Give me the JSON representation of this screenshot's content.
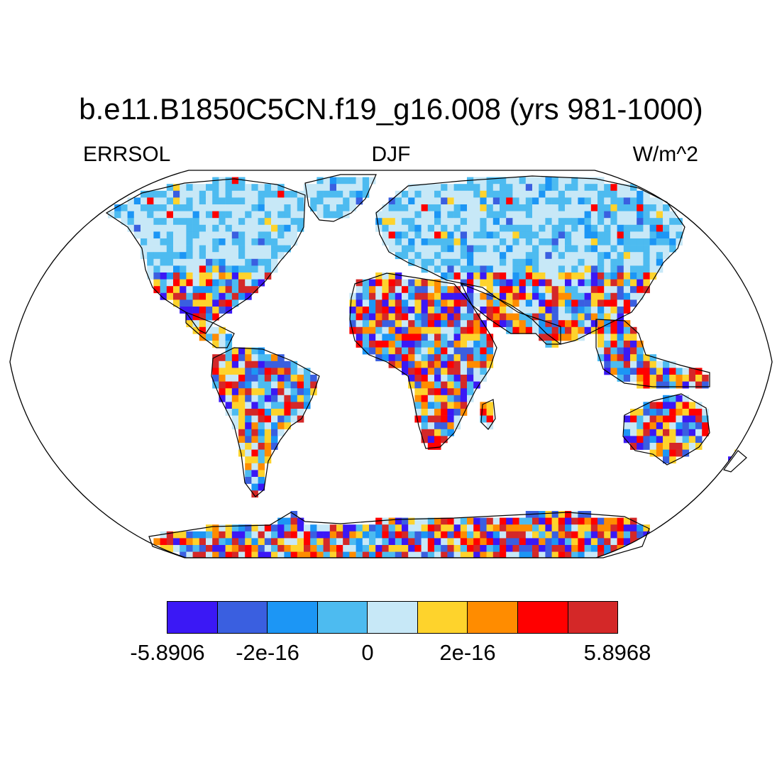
{
  "title": "b.e11.B1850C5CN.f19_g16.008 (yrs 981-1000)",
  "subtitle_left": "ERRSOL",
  "subtitle_center": "DJF",
  "subtitle_right": "W/m^2",
  "colorbar": {
    "colors": [
      "#3b18f5",
      "#3a5fe0",
      "#1c96f5",
      "#4dbbf0",
      "#c7e8f7",
      "#fed32c",
      "#ff8c00",
      "#ff0000",
      "#d42828"
    ],
    "labels": [
      "-5.8906",
      "-2e-16",
      "0",
      "2e-16",
      "5.8968"
    ]
  },
  "map": {
    "projection": "Robinson",
    "variable": "ERRSOL",
    "season": "DJF",
    "land_only": true
  }
}
